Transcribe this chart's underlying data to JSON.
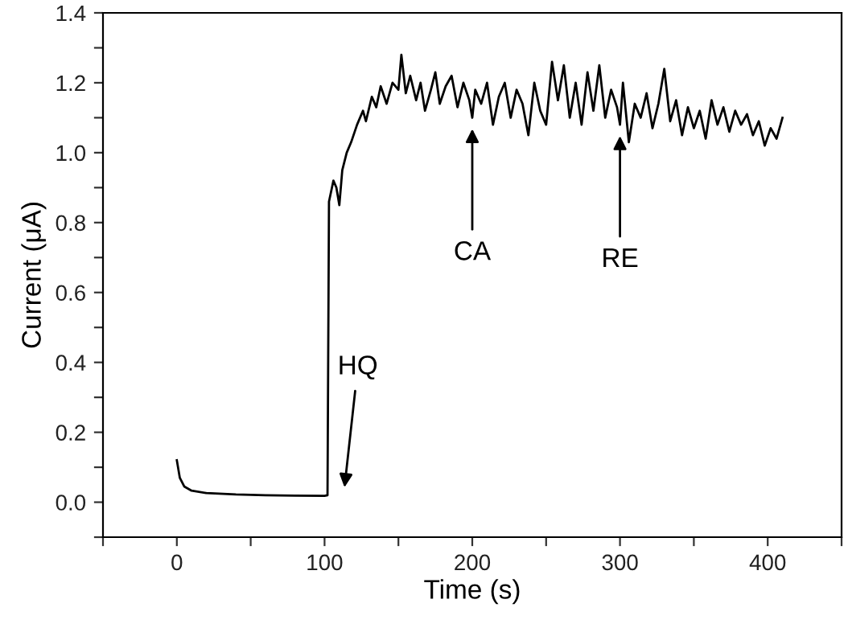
{
  "chart_data": {
    "type": "line",
    "xlabel": "Time (s)",
    "ylabel": "Current (μA)",
    "xlim": [
      -50,
      450
    ],
    "ylim": [
      -0.1,
      1.4
    ],
    "xticks": [
      {
        "value": -50,
        "label": null
      },
      0,
      {
        "value": 50,
        "label": null
      },
      100,
      {
        "value": 150,
        "label": null
      },
      200,
      {
        "value": 250,
        "label": null
      },
      300,
      {
        "value": 350,
        "label": null
      },
      400,
      {
        "value": 450,
        "label": null
      }
    ],
    "yticks": [
      {
        "value": -0.1,
        "label": null
      },
      {
        "value": 0,
        "label": "0.0"
      },
      {
        "value": 0.1,
        "label": null
      },
      {
        "value": 0.2,
        "label": "0.2"
      },
      {
        "value": 0.3,
        "label": null
      },
      {
        "value": 0.4,
        "label": "0.4"
      },
      {
        "value": 0.5,
        "label": null
      },
      {
        "value": 0.6,
        "label": "0.6"
      },
      {
        "value": 0.7,
        "label": null
      },
      {
        "value": 0.8,
        "label": "0.8"
      },
      {
        "value": 0.9,
        "label": null
      },
      {
        "value": 1.0,
        "label": "1.0"
      },
      {
        "value": 1.1,
        "label": null
      },
      {
        "value": 1.2,
        "label": "1.2"
      },
      {
        "value": 1.3,
        "label": null
      },
      {
        "value": 1.4,
        "label": "1.4"
      }
    ],
    "grid": false,
    "line_style": "solid",
    "marker": "none",
    "series": [
      {
        "color": "#000000",
        "x": [
          0,
          2,
          5,
          10,
          20,
          40,
          60,
          80,
          100,
          102,
          103,
          104,
          106,
          108,
          110,
          112,
          115,
          118,
          122,
          126,
          128,
          132,
          135,
          138,
          142,
          146,
          150,
          152,
          155,
          158,
          162,
          165,
          168,
          172,
          175,
          178,
          182,
          186,
          190,
          194,
          198,
          200,
          202,
          206,
          210,
          214,
          218,
          222,
          226,
          230,
          234,
          238,
          242,
          246,
          250,
          254,
          258,
          262,
          266,
          270,
          274,
          278,
          282,
          286,
          290,
          294,
          298,
          300,
          302,
          306,
          310,
          314,
          318,
          322,
          326,
          330,
          334,
          338,
          342,
          346,
          350,
          354,
          358,
          362,
          366,
          370,
          374,
          378,
          382,
          386,
          390,
          394,
          398,
          402,
          406,
          410
        ],
        "values": [
          0.12,
          0.07,
          0.045,
          0.033,
          0.026,
          0.022,
          0.02,
          0.019,
          0.018,
          0.02,
          0.86,
          0.88,
          0.92,
          0.9,
          0.85,
          0.95,
          1.0,
          1.03,
          1.08,
          1.12,
          1.09,
          1.16,
          1.13,
          1.19,
          1.14,
          1.2,
          1.18,
          1.28,
          1.17,
          1.22,
          1.15,
          1.2,
          1.12,
          1.18,
          1.23,
          1.14,
          1.19,
          1.22,
          1.13,
          1.2,
          1.15,
          1.1,
          1.18,
          1.14,
          1.2,
          1.08,
          1.16,
          1.2,
          1.1,
          1.18,
          1.14,
          1.05,
          1.2,
          1.12,
          1.08,
          1.26,
          1.15,
          1.25,
          1.1,
          1.2,
          1.08,
          1.23,
          1.12,
          1.25,
          1.1,
          1.18,
          1.13,
          1.08,
          1.2,
          1.03,
          1.14,
          1.1,
          1.17,
          1.07,
          1.14,
          1.24,
          1.09,
          1.15,
          1.05,
          1.13,
          1.07,
          1.12,
          1.04,
          1.15,
          1.08,
          1.13,
          1.06,
          1.12,
          1.08,
          1.11,
          1.05,
          1.09,
          1.02,
          1.07,
          1.04,
          1.1
        ]
      }
    ],
    "annotations": [
      {
        "text": "CA",
        "x": 200,
        "y": 1.1
      },
      {
        "text": "RE",
        "x": 300,
        "y": 1.08
      },
      "HQ"
    ]
  }
}
